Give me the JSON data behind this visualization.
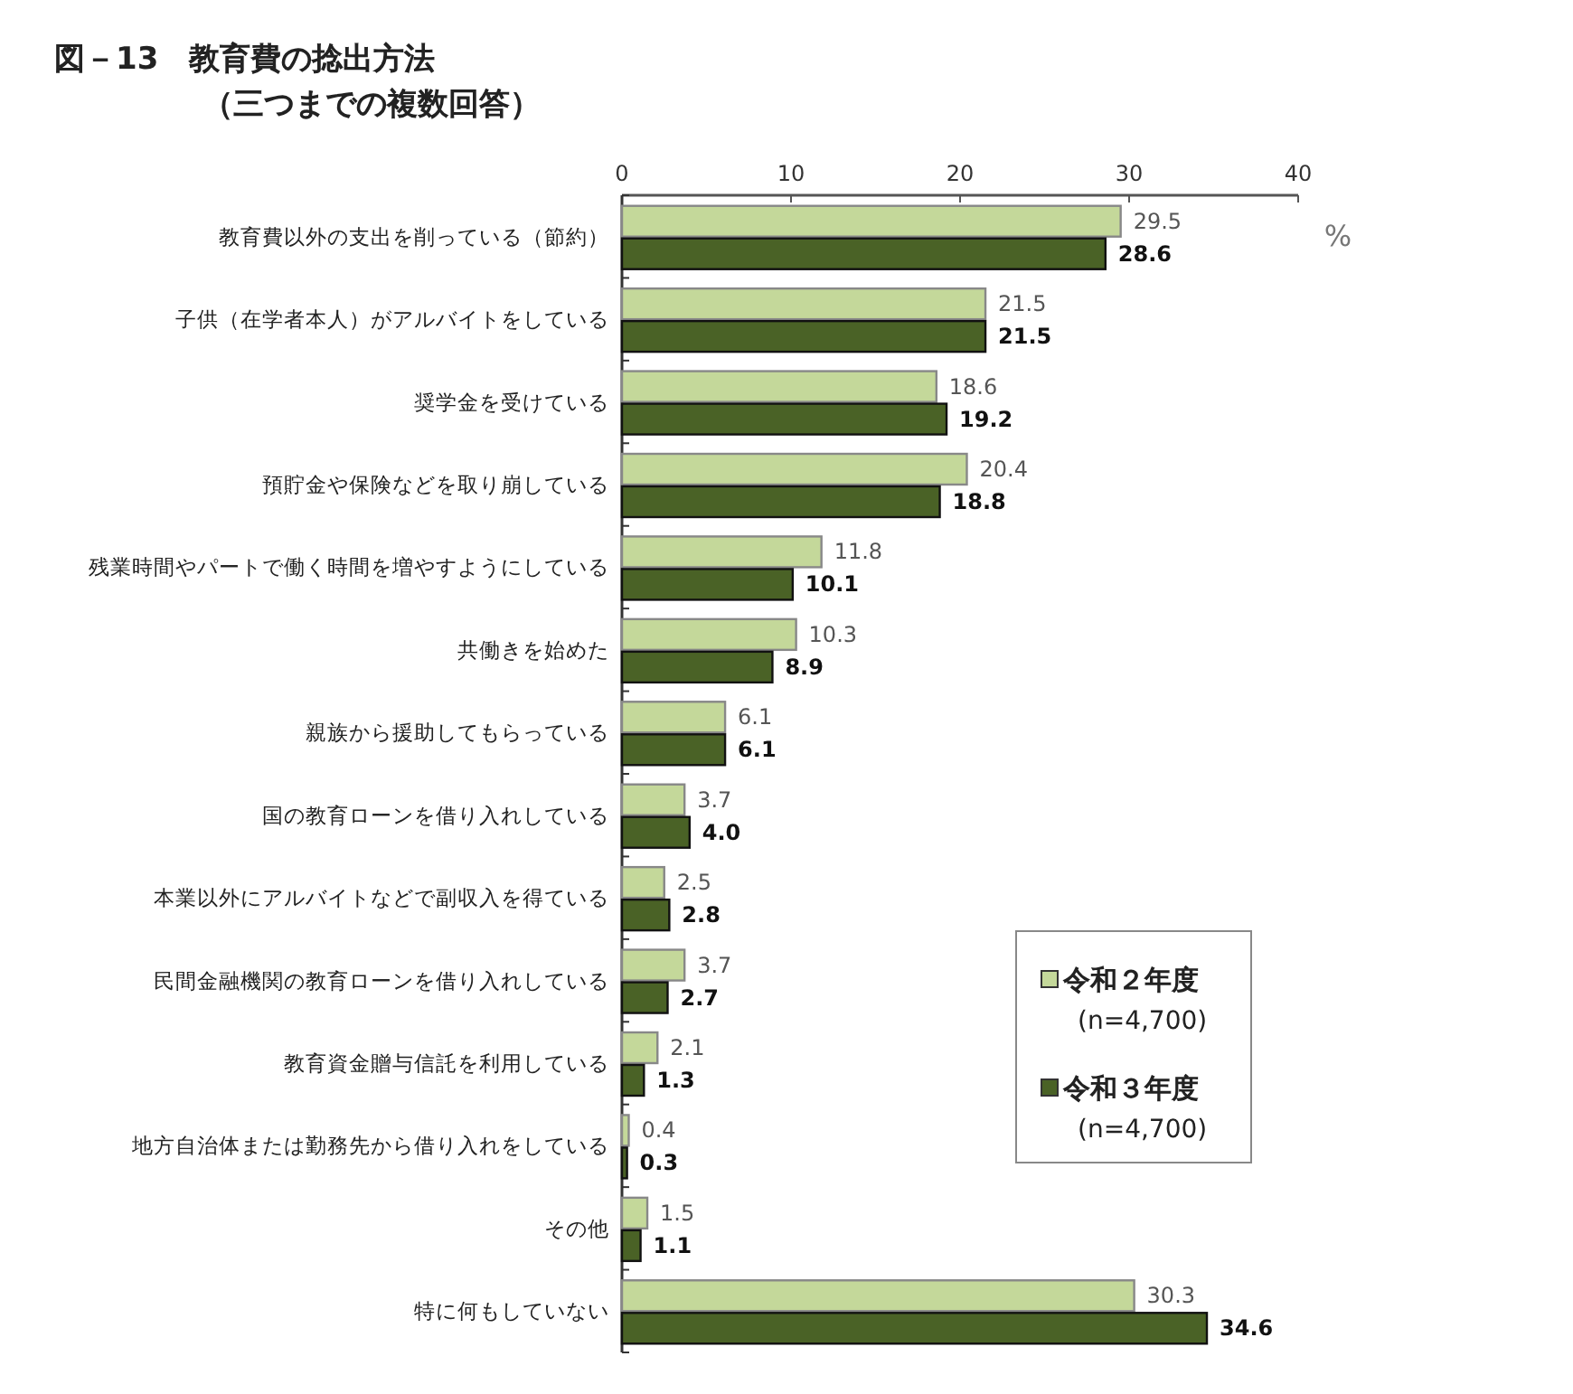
{
  "chart_data": {
    "type": "bar",
    "orientation": "horizontal",
    "title": "図－13　教育費の捻出方法",
    "subtitle": "（三つまでの複数回答）",
    "xlabel": "%",
    "categories": [
      "教育費以外の支出を削っている（節約）",
      "子供（在学者本人）がアルバイトをしている",
      "奨学金を受けている",
      "預貯金や保険などを取り崩している",
      "残業時間やパートで働く時間を増やすようにしている",
      "共働きを始めた",
      "親族から援助してもらっている",
      "国の教育ローンを借り入れしている",
      "本業以外にアルバイトなどで副収入を得ている",
      "民間金融機関の教育ローンを借り入れしている",
      "教育資金贈与信託を利用している",
      "地方自治体または勤務先から借り入れをしている",
      "その他",
      "特に何もしていない"
    ],
    "series": [
      {
        "name": "令和２年度\n(n=4,700)",
        "color": "#c4d89a",
        "values": [
          29.5,
          21.5,
          18.6,
          20.4,
          11.8,
          10.3,
          6.1,
          3.7,
          2.5,
          3.7,
          2.1,
          0.4,
          1.5,
          30.3
        ],
        "value_labels": [
          "29.5",
          "21.5",
          "18.6",
          "20.4",
          "11.8",
          "10.3",
          "6.1",
          "3.7",
          "2.5",
          "3.7",
          "2.1",
          "0.4",
          "1.5",
          "30.3"
        ]
      },
      {
        "name": "令和３年度\n(n=4,700)",
        "color": "#4a6226",
        "values": [
          28.6,
          21.5,
          19.2,
          18.8,
          10.1,
          8.9,
          6.1,
          4.0,
          2.8,
          2.7,
          1.3,
          0.3,
          1.1,
          34.6
        ],
        "value_labels": [
          "28.6",
          "21.5",
          "19.2",
          "18.8",
          "10.1",
          "8.9",
          "6.1",
          "4.0",
          "2.8",
          "2.7",
          "1.3",
          "0.3",
          "1.1",
          "34.6"
        ]
      }
    ],
    "xlim": [
      0,
      40
    ],
    "xticks": [
      0,
      10,
      20,
      30,
      40
    ],
    "grid": false,
    "legend": "bottom right"
  }
}
